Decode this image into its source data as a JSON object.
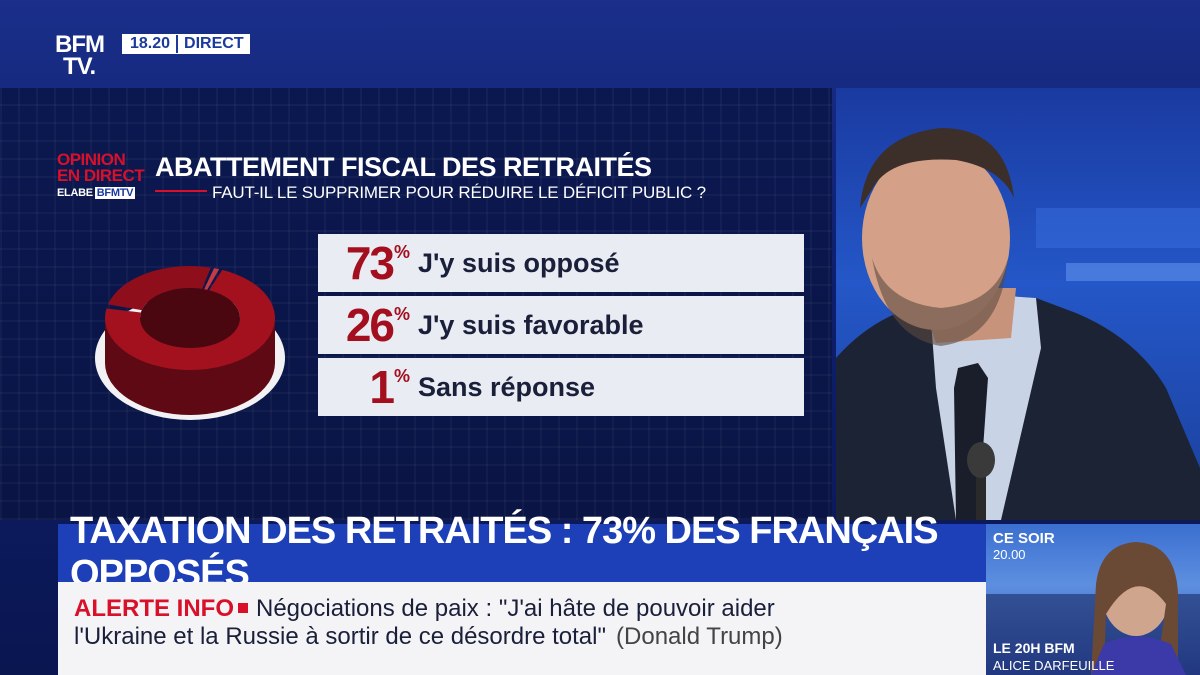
{
  "channel": {
    "logo_line1": "BFM",
    "logo_line2": "TV.",
    "time": "18.20",
    "live_label": "DIRECT"
  },
  "poll": {
    "brand_line1": "OPINION",
    "brand_line2": "EN DIRECT",
    "brand_source": "ELABE",
    "brand_partner": "BFMTV",
    "title": "ABATTEMENT FISCAL DES RETRAITÉS",
    "question": "FAUT-IL LE SUPPRIMER POUR RÉDUIRE LE DÉFICIT PUBLIC ?"
  },
  "chart_data": {
    "type": "pie",
    "title": "ABATTEMENT FISCAL DES RETRAITÉS",
    "subtitle": "FAUT-IL LE SUPPRIMER POUR RÉDUIRE LE DÉFICIT PUBLIC ?",
    "categories": [
      "J'y suis opposé",
      "J'y suis favorable",
      "Sans réponse"
    ],
    "values": [
      73,
      26,
      1
    ],
    "value_labels": [
      "73",
      "26",
      "1"
    ],
    "unit": "%",
    "colors": [
      "#8e0e1c",
      "#8e0e1c",
      "#8e0e1c"
    ]
  },
  "headline": "TAXATION DES RETRAITÉS : 73% DES FRANÇAIS OPPOSÉS",
  "ticker": {
    "alert_label": "ALERTE INFO",
    "line1": "Négociations de paix : \"J'ai hâte de pouvoir aider",
    "line2": "l'Ukraine et la Russie à sortir de ce désordre total\"",
    "source": "(Donald Trump)"
  },
  "promo": {
    "label": "CE SOIR",
    "time": "20.00",
    "show": "LE 20H BFM",
    "host": "ALICE DARFEUILLE"
  },
  "colors": {
    "brand_blue": "#1d3fb7",
    "accent_red": "#d8102a",
    "bar_bg": "#e9ecf2"
  }
}
